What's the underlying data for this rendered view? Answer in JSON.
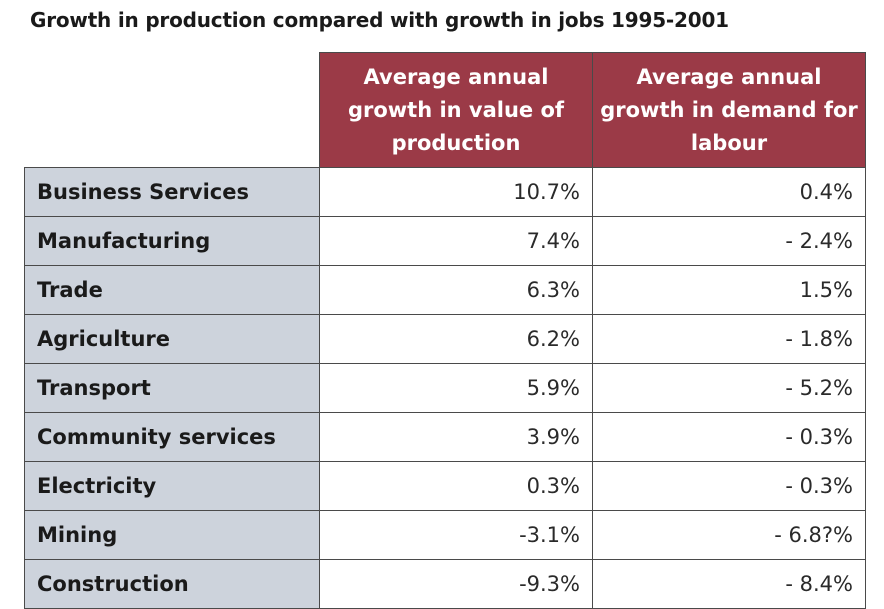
{
  "title": "Growth in production compared with growth in jobs 1995-2001",
  "table": {
    "headers": {
      "production": "Average annual growth in value of production",
      "jobs": "Average annual growth in demand for labour"
    },
    "rows": [
      {
        "sector": "Business Services",
        "production": "10.7%",
        "jobs": "0.4%"
      },
      {
        "sector": "Manufacturing",
        "production": "7.4%",
        "jobs": "- 2.4%"
      },
      {
        "sector": "Trade",
        "production": "6.3%",
        "jobs": "1.5%"
      },
      {
        "sector": "Agriculture",
        "production": "6.2%",
        "jobs": "- 1.8%"
      },
      {
        "sector": "Transport",
        "production": "5.9%",
        "jobs": "- 5.2%"
      },
      {
        "sector": "Community services",
        "production": "3.9%",
        "jobs": "- 0.3%"
      },
      {
        "sector": "Electricity",
        "production": "0.3%",
        "jobs": "- 0.3%"
      },
      {
        "sector": "Mining",
        "production": "-3.1%",
        "jobs": "- 6.8?%"
      },
      {
        "sector": "Construction",
        "production": "-9.3%",
        "jobs": "- 8.4%"
      }
    ]
  },
  "colors": {
    "header_bg": "#9b3a47",
    "label_bg": "#cdd3dc"
  }
}
